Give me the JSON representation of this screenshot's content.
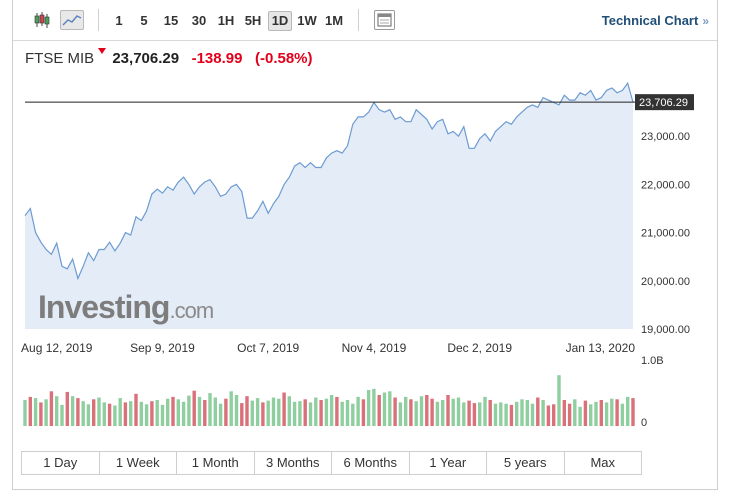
{
  "toolbar": {
    "timeframes": [
      "1",
      "5",
      "15",
      "30",
      "1H",
      "5H",
      "1D",
      "1W",
      "1M"
    ],
    "selected_timeframe": "1D",
    "technical_chart_label": "Technical Chart",
    "technical_chart_arrow": "»"
  },
  "quote": {
    "name": "FTSE MIB",
    "price": "23,706.29",
    "change": "-138.99",
    "change_pct": "(-0.58%)",
    "direction": "down"
  },
  "watermark": {
    "brand": "Investing",
    "suffix": ".com"
  },
  "ranges": [
    "1 Day",
    "1 Week",
    "1 Month",
    "3 Months",
    "6 Months",
    "1 Year",
    "5 years",
    "Max"
  ],
  "colors": {
    "line": "#6c9bd2",
    "area": "#e4edf7",
    "price_tag": "#333333",
    "vol_up": "#8fcf9f",
    "vol_down": "#d9707a",
    "negative": "#e3001b"
  },
  "chart_data": {
    "type": "area",
    "title": "",
    "xlabel": "",
    "ylabel": "",
    "ylim": [
      19000,
      24000
    ],
    "yticks": [
      19000,
      20000,
      21000,
      22000,
      23000
    ],
    "ytick_labels": [
      "19,000.00",
      "20,000.00",
      "21,000.00",
      "22,000.00",
      "23,000.00"
    ],
    "x_tick_labels": [
      "Aug 12, 2019",
      "Sep 9, 2019",
      "Oct 7, 2019",
      "Nov 4, 2019",
      "Dec 2, 2019",
      "Jan 13, 2020"
    ],
    "x_tick_index": [
      6,
      26,
      46,
      66,
      86,
      111
    ],
    "last_price_label": "23,706.29",
    "last_price": 23706.29,
    "x": [
      "Aug 5",
      "Aug 6",
      "Aug 7",
      "Aug 8",
      "Aug 9",
      "Aug 12",
      "Aug 13",
      "Aug 14",
      "Aug 15",
      "Aug 16",
      "Aug 19",
      "Aug 20",
      "Aug 21",
      "Aug 22",
      "Aug 23",
      "Aug 26",
      "Aug 27",
      "Aug 28",
      "Aug 29",
      "Aug 30",
      "Sep 2",
      "Sep 3",
      "Sep 4",
      "Sep 5",
      "Sep 6",
      "Sep 9",
      "Sep 10",
      "Sep 11",
      "Sep 12",
      "Sep 13",
      "Sep 16",
      "Sep 17",
      "Sep 18",
      "Sep 19",
      "Sep 20",
      "Sep 23",
      "Sep 24",
      "Sep 25",
      "Sep 26",
      "Sep 27",
      "Sep 30",
      "Oct 1",
      "Oct 2",
      "Oct 3",
      "Oct 4",
      "Oct 7",
      "Oct 8",
      "Oct 9",
      "Oct 10",
      "Oct 11",
      "Oct 14",
      "Oct 15",
      "Oct 16",
      "Oct 17",
      "Oct 18",
      "Oct 21",
      "Oct 22",
      "Oct 23",
      "Oct 24",
      "Oct 25",
      "Oct 28",
      "Oct 29",
      "Oct 30",
      "Oct 31",
      "Nov 1",
      "Nov 4",
      "Nov 5",
      "Nov 6",
      "Nov 7",
      "Nov 8",
      "Nov 11",
      "Nov 12",
      "Nov 13",
      "Nov 14",
      "Nov 15",
      "Nov 18",
      "Nov 19",
      "Nov 20",
      "Nov 21",
      "Nov 22",
      "Nov 25",
      "Nov 26",
      "Nov 27",
      "Nov 28",
      "Nov 29",
      "Dec 2",
      "Dec 3",
      "Dec 4",
      "Dec 5",
      "Dec 6",
      "Dec 9",
      "Dec 10",
      "Dec 11",
      "Dec 12",
      "Dec 13",
      "Dec 16",
      "Dec 17",
      "Dec 18",
      "Dec 19",
      "Dec 20",
      "Dec 23",
      "Dec 24",
      "Dec 27",
      "Dec 30",
      "Jan 2",
      "Jan 3",
      "Jan 6",
      "Jan 7",
      "Jan 8",
      "Jan 9",
      "Jan 10",
      "Jan 13",
      "Jan 14",
      "Jan 15",
      "Jan 16",
      "Jan 17"
    ],
    "series": [
      {
        "values": [
          21350,
          21500,
          21000,
          20800,
          20650,
          20550,
          20780,
          20300,
          20250,
          20450,
          20050,
          20300,
          20580,
          20420,
          20650,
          20650,
          20800,
          20620,
          20780,
          21000,
          20950,
          21330,
          21250,
          21450,
          21800,
          21900,
          21820,
          21950,
          21880,
          22050,
          22150,
          22000,
          21800,
          21950,
          22050,
          22100,
          21950,
          21750,
          21800,
          21950,
          22000,
          21850,
          21300,
          21300,
          21450,
          21650,
          21400,
          21600,
          21750,
          22000,
          22150,
          22380,
          22450,
          22350,
          22450,
          22350,
          22350,
          22550,
          22650,
          22700,
          22650,
          22800,
          23250,
          23400,
          23400,
          23500,
          23700,
          23550,
          23500,
          23550,
          23350,
          23400,
          23300,
          23300,
          23550,
          23450,
          23350,
          23150,
          23300,
          23350,
          23050,
          23100,
          23000,
          23200,
          22750,
          22750,
          22950,
          23050,
          22900,
          23100,
          23200,
          23300,
          23250,
          23400,
          23500,
          23600,
          23650,
          23600,
          23800,
          23750,
          23700,
          23650,
          23850,
          23750,
          23750,
          23900,
          23850,
          23950,
          23750,
          23800,
          23950,
          24000,
          23900,
          23950,
          24100,
          23706.29
        ]
      }
    ],
    "volume": {
      "axis_labels": [
        "1.0B",
        "0"
      ],
      "ylim": [
        0,
        1000000000
      ],
      "values": [
        420,
        470,
        450,
        380,
        430,
        560,
        480,
        340,
        550,
        480,
        450,
        400,
        350,
        430,
        460,
        380,
        360,
        330,
        450,
        380,
        400,
        520,
        390,
        350,
        400,
        420,
        340,
        440,
        470,
        430,
        390,
        490,
        570,
        470,
        420,
        530,
        460,
        360,
        440,
        560,
        500,
        370,
        480,
        410,
        450,
        380,
        410,
        460,
        440,
        540,
        480,
        390,
        400,
        430,
        380,
        460,
        420,
        440,
        500,
        470,
        390,
        420,
        360,
        470,
        430,
        580,
        600,
        500,
        540,
        560,
        460,
        380,
        470,
        430,
        400,
        480,
        500,
        440,
        390,
        420,
        500,
        440,
        460,
        380,
        410,
        370,
        380,
        470,
        420,
        360,
        380,
        360,
        340,
        390,
        430,
        420,
        360,
        460,
        420,
        330,
        350,
        820,
        420,
        360,
        430,
        310,
        410,
        350,
        390,
        420,
        380,
        440,
        430,
        360,
        470,
        450
      ],
      "up": [
        1,
        0,
        1,
        0,
        1,
        0,
        1,
        1,
        0,
        1,
        0,
        1,
        1,
        0,
        1,
        1,
        0,
        1,
        1,
        0,
        1,
        0,
        1,
        1,
        0,
        1,
        1,
        1,
        0,
        1,
        1,
        1,
        0,
        1,
        0,
        1,
        1,
        1,
        0,
        1,
        1,
        0,
        0,
        1,
        1,
        0,
        1,
        1,
        1,
        0,
        1,
        1,
        1,
        0,
        1,
        1,
        0,
        1,
        1,
        0,
        1,
        1,
        1,
        1,
        0,
        1,
        1,
        0,
        1,
        1,
        0,
        1,
        1,
        0,
        1,
        1,
        0,
        0,
        1,
        1,
        0,
        1,
        1,
        1,
        0,
        0,
        1,
        1,
        0,
        1,
        1,
        1,
        0,
        1,
        1,
        1,
        1,
        0,
        1,
        0,
        0,
        1,
        0,
        0,
        1,
        1,
        0,
        1,
        1,
        0,
        1,
        1,
        0,
        1,
        1,
        0
      ]
    }
  }
}
